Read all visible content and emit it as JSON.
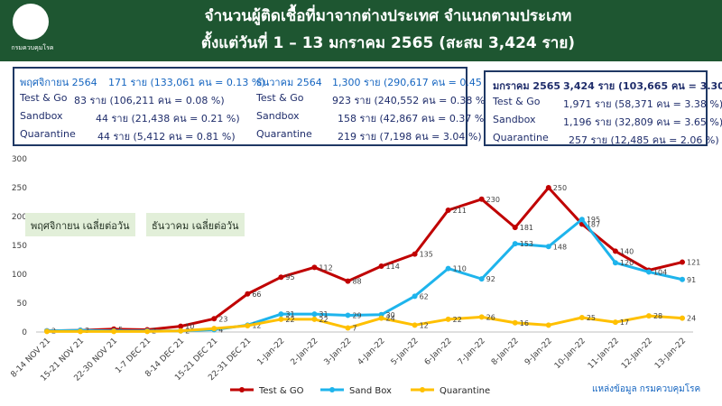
{
  "header": {
    "logo_text": "กรมควบคุมโรค",
    "title_line1": "จำนวนผู้ติดเชื้อที่มาจากต่างประเทศ จำแนกตามประเภท",
    "title_line2": "ตั้งแต่วันที่   1 – 13  มกราคม  2565 (สะสม 3,424 ราย)",
    "bg_color": "#1e5631"
  },
  "summary_box_1": {
    "col1": [
      {
        "label": "พฤศจิกายน 2564",
        "value": "171 ราย (133,061 คน = 0.13 %)"
      },
      {
        "label": "Test & Go",
        "value": "83  ราย (106,211 คน = 0.08 %)"
      },
      {
        "label": "Sandbox",
        "value": "44  ราย  (21,438 คน  = 0.21 %)"
      },
      {
        "label": "Quarantine",
        "value": "44  ราย  (5,412 คน   = 0.81 %)"
      }
    ],
    "col2": [
      {
        "label": "ธันวาคม 2564",
        "value": "1,300 ราย (290,617 คน = 0.45 %)"
      },
      {
        "label": "Test & Go",
        "value": "923  ราย (240,552 คน = 0.38 %)"
      },
      {
        "label": "Sandbox",
        "value": "158  ราย (42,867 คน  = 0.37 %)"
      },
      {
        "label": "Quarantine",
        "value": "219  ราย (7,198 คน   = 3.04 %)"
      }
    ]
  },
  "summary_box_2": [
    {
      "label": "มกราคม 2565",
      "value": "3,424 ราย (103,665 คน = 3.30 %)"
    },
    {
      "label": "Test & Go",
      "value": "1,971 ราย (58,371 คน = 3.38 %)"
    },
    {
      "label": "Sandbox",
      "value": "1,196 ราย (32,809 คน = 3.65 %)"
    },
    {
      "label": "Quarantine",
      "value": "257 ราย (12,485 คน = 2.06 %)"
    }
  ],
  "avg_labels": {
    "nov": "พฤศจิกายน เฉลี่ยต่อวัน",
    "dec": "ธันวาคม เฉลี่ยต่อวัน"
  },
  "source": "แหล่งข้อมูล กรมควบคุมโรค",
  "chart_data": {
    "type": "line",
    "categories": [
      "8-14 NOV 21",
      "15-21 NOV 21",
      "22-30 NOV 21",
      "1-7 DEC 21",
      "8-14 DEC 21",
      "15-21 DEC 21",
      "22-31 DEC 21",
      "1-Jan-22",
      "2-Jan-22",
      "3-Jan-22",
      "4-Jan-22",
      "5-Jan-22",
      "6-Jan-22",
      "7-Jan-22",
      "8-Jan-22",
      "9-Jan-22",
      "10-Jan-22",
      "11-Jan-22",
      "12-Jan-22",
      "13-Jan-22"
    ],
    "ylim": [
      0,
      300
    ],
    "yticks": [
      0,
      50,
      100,
      150,
      200,
      250,
      300
    ],
    "series": [
      {
        "name": "Test & GO",
        "color": "#c00000",
        "values": [
          2,
          3,
          5,
          4,
          10,
          23,
          66,
          95,
          112,
          88,
          114,
          135,
          211,
          230,
          181,
          250,
          187,
          140,
          107,
          121
        ],
        "labels": [
          "",
          "",
          "5",
          "",
          "10",
          "23",
          "66",
          "95",
          "112",
          "88",
          "114",
          "135",
          "211",
          "230",
          "181",
          "250",
          "187",
          "140",
          "",
          "121"
        ]
      },
      {
        "name": "Sand Box",
        "color": "#1eb4ec",
        "values": [
          2,
          3,
          2,
          2,
          2,
          4,
          12,
          31,
          31,
          29,
          30,
          62,
          110,
          92,
          153,
          148,
          195,
          120,
          104,
          91
        ],
        "labels": [
          "2",
          "3",
          "",
          "2",
          "2",
          "4",
          "12",
          "31",
          "31",
          "29",
          "30",
          "62",
          "110",
          "92",
          "153",
          "148",
          "195",
          "120",
          "104",
          "91"
        ]
      },
      {
        "name": "Quarantine",
        "color": "#ffc000",
        "values": [
          1,
          1,
          1,
          1,
          2,
          6,
          11,
          22,
          22,
          7,
          24,
          12,
          22,
          26,
          16,
          12,
          25,
          17,
          28,
          24
        ],
        "labels": [
          "",
          "",
          "",
          "",
          "",
          "",
          "",
          "22",
          "22",
          "7",
          "24",
          "12",
          "22",
          "26",
          "16",
          "",
          "25",
          "17",
          "28",
          "24"
        ]
      }
    ],
    "legend_position": "bottom-center",
    "grid": false
  }
}
